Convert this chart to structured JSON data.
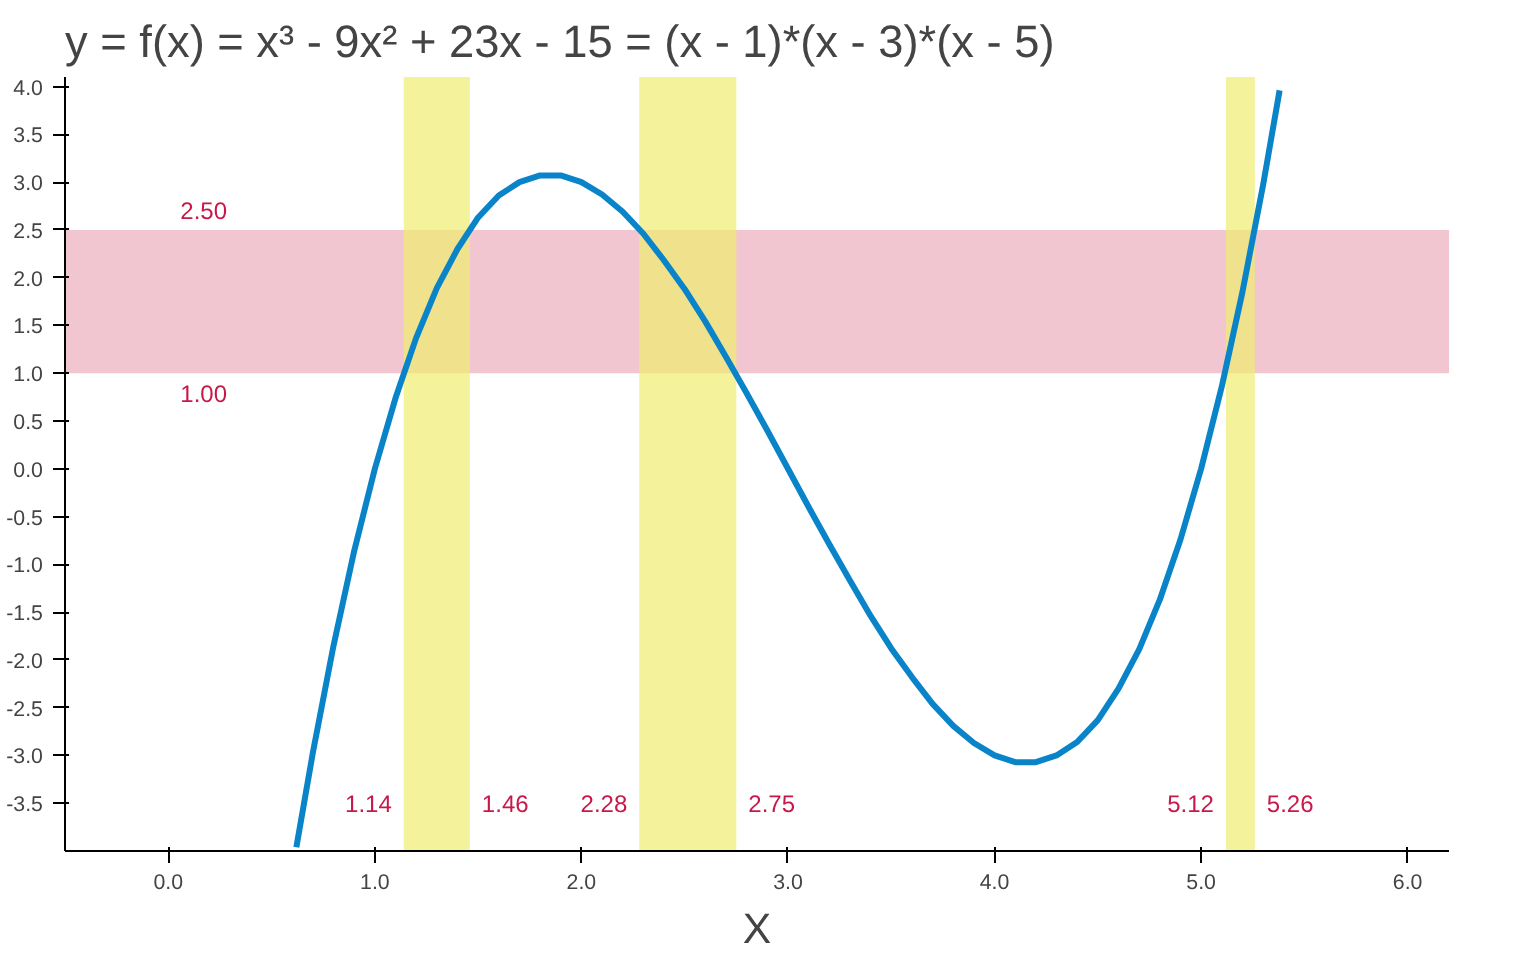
{
  "chart_data": {
    "type": "line",
    "title": "y = f(x)  = x³ - 9x² + 23x - 15 = (x - 1)*(x - 3)*(x - 5)",
    "xlabel": "X",
    "x": [
      0.62,
      0.7,
      0.8,
      0.9,
      1.0,
      1.1,
      1.2,
      1.3,
      1.4,
      1.5,
      1.6,
      1.7,
      1.8,
      1.9,
      2.0,
      2.1,
      2.2,
      2.3,
      2.4,
      2.5,
      2.6,
      2.7,
      2.8,
      2.9,
      3.0,
      3.1,
      3.2,
      3.3,
      3.4,
      3.5,
      3.6,
      3.7,
      3.8,
      3.9,
      4.0,
      4.1,
      4.2,
      4.3,
      4.4,
      4.5,
      4.6,
      4.7,
      4.8,
      4.9,
      5.0,
      5.1,
      5.2,
      5.3,
      5.38
    ],
    "series": [
      {
        "color": "#0a84c8",
        "values": [
          -3.96,
          -2.97,
          -1.85,
          -0.86,
          0,
          0.74,
          1.37,
          1.89,
          2.3,
          2.63,
          2.86,
          3.0,
          3.07,
          3.07,
          3.0,
          2.87,
          2.69,
          2.46,
          2.18,
          1.88,
          1.54,
          1.17,
          0.79,
          0.4,
          0,
          -0.4,
          -0.79,
          -1.17,
          -1.54,
          -1.88,
          -2.18,
          -2.46,
          -2.69,
          -2.87,
          -3.0,
          -3.07,
          -3.07,
          -3.0,
          -2.86,
          -2.63,
          -2.3,
          -1.89,
          -1.37,
          -0.74,
          0,
          0.86,
          1.85,
          2.97,
          3.96
        ]
      }
    ],
    "xlim": [
      -0.5,
      6.2
    ],
    "ylim": [
      -4.0,
      4.1
    ],
    "xticks": [
      {
        "value": 0,
        "label": "0.0"
      },
      {
        "value": 1,
        "label": "1.0"
      },
      {
        "value": 2,
        "label": "2.0"
      },
      {
        "value": 3,
        "label": "3.0"
      },
      {
        "value": 4,
        "label": "4.0"
      },
      {
        "value": 5,
        "label": "5.0"
      },
      {
        "value": 6,
        "label": "6.0"
      }
    ],
    "yticks": [
      {
        "value": -3.5,
        "label": "-3.5"
      },
      {
        "value": -3,
        "label": "-3.0"
      },
      {
        "value": -2.5,
        "label": "-2.5"
      },
      {
        "value": -2,
        "label": "-2.0"
      },
      {
        "value": -1.5,
        "label": "-1.5"
      },
      {
        "value": -1,
        "label": "-1.0"
      },
      {
        "value": -0.5,
        "label": "-0.5"
      },
      {
        "value": 0,
        "label": "0.0"
      },
      {
        "value": 0.5,
        "label": "0.5"
      },
      {
        "value": 1,
        "label": "1.0"
      },
      {
        "value": 1.5,
        "label": "1.5"
      },
      {
        "value": 2,
        "label": "2.0"
      },
      {
        "value": 2.5,
        "label": "2.5"
      },
      {
        "value": 3,
        "label": "3.0"
      },
      {
        "value": 3.5,
        "label": "3.5"
      },
      {
        "value": 4,
        "label": "4.0"
      }
    ],
    "bands": [
      {
        "axis": "y",
        "from": 1.0,
        "to": 2.5,
        "color": "#e8a0b0"
      },
      {
        "axis": "x",
        "from": 1.14,
        "to": 1.46,
        "color": "#f0ec70"
      },
      {
        "axis": "x",
        "from": 2.28,
        "to": 2.75,
        "color": "#f0ec70"
      },
      {
        "axis": "x",
        "from": 5.12,
        "to": 5.26,
        "color": "#f0ec70"
      }
    ],
    "annotations": [
      {
        "text": "2.50",
        "x": 0,
        "y": 2.5
      },
      {
        "text": "1.00",
        "x": 0,
        "y": 1.0
      },
      {
        "text": "1.14",
        "x": 1.14,
        "y": -3.5
      },
      {
        "text": "1.46",
        "x": 1.46,
        "y": -3.5
      },
      {
        "text": "2.28",
        "x": 2.28,
        "y": -3.5
      },
      {
        "text": "2.75",
        "x": 2.75,
        "y": -3.5
      },
      {
        "text": "5.12",
        "x": 5.12,
        "y": -3.5
      },
      {
        "text": "5.26",
        "x": 5.26,
        "y": -3.5
      }
    ],
    "line_style": "solid"
  }
}
